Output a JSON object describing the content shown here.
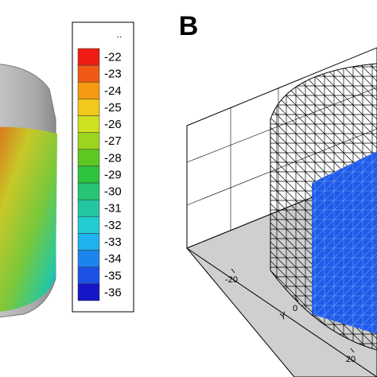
{
  "panel_label": "B",
  "colorbar": {
    "title": "..",
    "levels": [
      -22,
      -23,
      -24,
      -25,
      -26,
      -27,
      -28,
      -29,
      -30,
      -31,
      -32,
      -33,
      -34,
      -35,
      -36
    ],
    "colors": [
      "#ee1c12",
      "#f05a14",
      "#f59a12",
      "#f2c81a",
      "#cfe01e",
      "#9cd420",
      "#5cc822",
      "#2ec43e",
      "#26c474",
      "#24c6a2",
      "#22ccd0",
      "#1eb2ee",
      "#1c84ee",
      "#1c52e4",
      "#1616c8"
    ]
  },
  "axis": {
    "label": "Y",
    "ticks": [
      -20,
      0,
      20
    ]
  }
}
